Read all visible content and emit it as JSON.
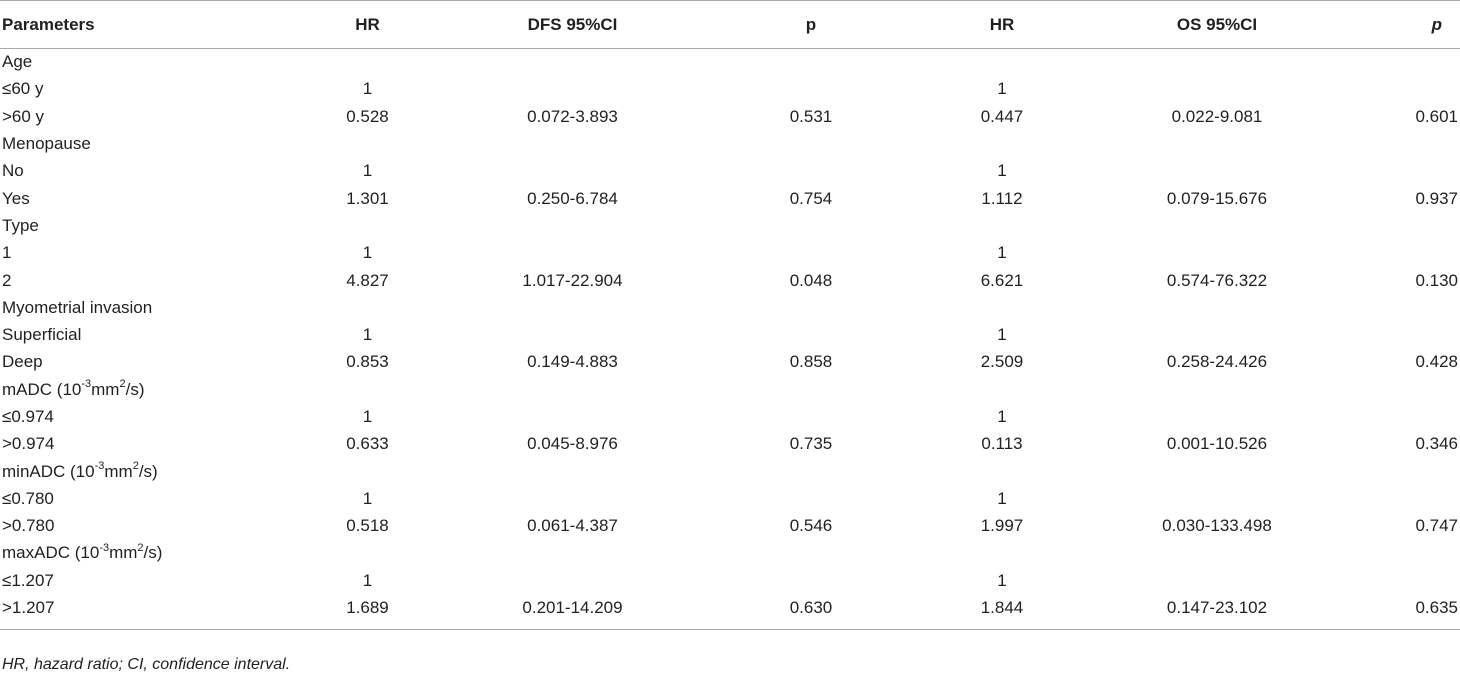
{
  "header": {
    "parameters": "Parameters",
    "hr1": "HR",
    "dfs_ci": "DFS 95%CI",
    "p1": "p",
    "hr2": "HR",
    "os_ci": "OS 95%CI",
    "p2": "p"
  },
  "rows": [
    {
      "label": "Age",
      "hr1": "",
      "ci1": "",
      "p1": "",
      "hr2": "",
      "ci2": "",
      "p2": ""
    },
    {
      "label": "≤60 y",
      "hr1": "1",
      "ci1": "",
      "p1": "",
      "hr2": "1",
      "ci2": "",
      "p2": ""
    },
    {
      "label": ">60 y",
      "hr1": "0.528",
      "ci1": "0.072-3.893",
      "p1": "0.531",
      "hr2": "0.447",
      "ci2": "0.022-9.081",
      "p2": "0.601"
    },
    {
      "label": "Menopause",
      "hr1": "",
      "ci1": "",
      "p1": "",
      "hr2": "",
      "ci2": "",
      "p2": ""
    },
    {
      "label": "No",
      "hr1": "1",
      "ci1": "",
      "p1": "",
      "hr2": "1",
      "ci2": "",
      "p2": ""
    },
    {
      "label": "Yes",
      "hr1": "1.301",
      "ci1": "0.250-6.784",
      "p1": "0.754",
      "hr2": "1.112",
      "ci2": "0.079-15.676",
      "p2": "0.937"
    },
    {
      "label": "Type",
      "hr1": "",
      "ci1": "",
      "p1": "",
      "hr2": "",
      "ci2": "",
      "p2": ""
    },
    {
      "label": "1",
      "hr1": "1",
      "ci1": "",
      "p1": "",
      "hr2": "1",
      "ci2": "",
      "p2": ""
    },
    {
      "label": "2",
      "hr1": "4.827",
      "ci1": "1.017-22.904",
      "p1": "0.048",
      "hr2": "6.621",
      "ci2": "0.574-76.322",
      "p2": "0.130"
    },
    {
      "label": "Myometrial invasion",
      "hr1": "",
      "ci1": "",
      "p1": "",
      "hr2": "",
      "ci2": "",
      "p2": ""
    },
    {
      "label": "Superficial",
      "hr1": "1",
      "ci1": "",
      "p1": "",
      "hr2": "1",
      "ci2": "",
      "p2": ""
    },
    {
      "label": "Deep",
      "hr1": "0.853",
      "ci1": "0.149-4.883",
      "p1": "0.858",
      "hr2": "2.509",
      "ci2": "0.258-24.426",
      "p2": "0.428"
    },
    {
      "label_parts": [
        "mADC (10",
        "-3",
        "mm",
        "2",
        "/s)"
      ],
      "hr1": "",
      "ci1": "",
      "p1": "",
      "hr2": "",
      "ci2": "",
      "p2": ""
    },
    {
      "label": "≤0.974",
      "hr1": "1",
      "ci1": "",
      "p1": "",
      "hr2": "1",
      "ci2": "",
      "p2": ""
    },
    {
      "label": ">0.974",
      "hr1": "0.633",
      "ci1": "0.045-8.976",
      "p1": "0.735",
      "hr2": "0.113",
      "ci2": "0.001-10.526",
      "p2": "0.346"
    },
    {
      "label_parts": [
        "minADC (10",
        "-3",
        "mm",
        "2",
        "/s)"
      ],
      "hr1": "",
      "ci1": "",
      "p1": "",
      "hr2": "",
      "ci2": "",
      "p2": ""
    },
    {
      "label": "≤0.780",
      "hr1": "1",
      "ci1": "",
      "p1": "",
      "hr2": "1",
      "ci2": "",
      "p2": ""
    },
    {
      "label": ">0.780",
      "hr1": "0.518",
      "ci1": "0.061-4.387",
      "p1": "0.546",
      "hr2": "1.997",
      "ci2": "0.030-133.498",
      "p2": "0.747"
    },
    {
      "label_parts": [
        "maxADC (10",
        "-3",
        "mm",
        "2",
        "/s)"
      ],
      "hr1": "",
      "ci1": "",
      "p1": "",
      "hr2": "",
      "ci2": "",
      "p2": ""
    },
    {
      "label": "≤1.207",
      "hr1": "1",
      "ci1": "",
      "p1": "",
      "hr2": "1",
      "ci2": "",
      "p2": ""
    },
    {
      "label": ">1.207",
      "hr1": "1.689",
      "ci1": "0.201-14.209",
      "p1": "0.630",
      "hr2": "1.844",
      "ci2": "0.147-23.102",
      "p2": "0.635"
    }
  ],
  "footnote": "HR, hazard ratio; CI, confidence interval."
}
